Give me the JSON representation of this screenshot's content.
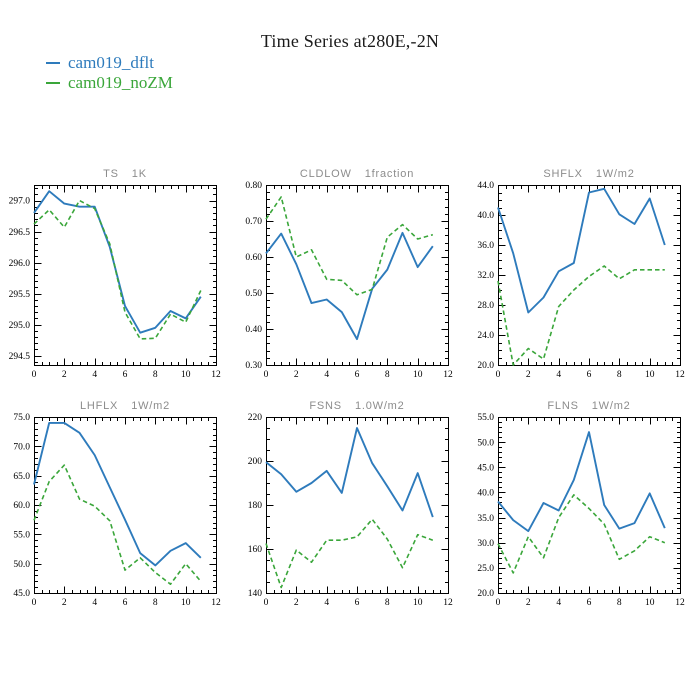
{
  "page": {
    "title": "Time Series at280E,-2N",
    "background": "#ffffff"
  },
  "legend": {
    "position": "top-left",
    "items": [
      {
        "label": "cam019_dflt",
        "color": "#2e7bbc",
        "style": "solid"
      },
      {
        "label": "cam019_noZM",
        "color": "#3aa63a",
        "style": "dashed"
      }
    ]
  },
  "colors": {
    "frame": "#000000",
    "tick_label": "#000000",
    "subplot_title": "#8c8c8c",
    "background": "#ffffff"
  },
  "chart_data": [
    {
      "type": "line",
      "name": "TS",
      "units": "1K",
      "x": [
        0,
        1,
        2,
        3,
        4,
        5,
        6,
        7,
        8,
        9,
        10,
        11
      ],
      "xlim": [
        0,
        12
      ],
      "xticks": [
        0,
        2,
        4,
        6,
        8,
        10,
        12
      ],
      "x_minor_step": 0.5,
      "ylim": [
        294.35,
        297.25
      ],
      "yticks": [
        294.5,
        295.0,
        295.5,
        296.0,
        296.5,
        297.0
      ],
      "ytick_labels": [
        "294.5",
        "295.0",
        "295.5",
        "296.0",
        "296.5",
        "297.0"
      ],
      "y_minor_step": 0.1,
      "grid": false,
      "series": [
        {
          "name": "cam019_dflt",
          "color": "#2e7bbc",
          "style": "solid",
          "values": [
            296.8,
            297.15,
            296.95,
            296.9,
            296.9,
            296.25,
            295.3,
            294.87,
            294.95,
            295.22,
            295.1,
            295.45
          ]
        },
        {
          "name": "cam019_noZM",
          "color": "#3aa63a",
          "style": "dashed",
          "values": [
            296.62,
            296.85,
            296.57,
            297.0,
            296.87,
            296.3,
            295.2,
            294.77,
            294.78,
            295.17,
            295.04,
            295.55
          ]
        }
      ]
    },
    {
      "type": "line",
      "name": "CLDLOW",
      "units": "1fraction",
      "x": [
        0,
        1,
        2,
        3,
        4,
        5,
        6,
        7,
        8,
        9,
        10,
        11
      ],
      "xlim": [
        0,
        12
      ],
      "xticks": [
        0,
        2,
        4,
        6,
        8,
        10,
        12
      ],
      "x_minor_step": 0.5,
      "ylim": [
        0.3,
        0.8
      ],
      "yticks": [
        0.3,
        0.4,
        0.5,
        0.6,
        0.7,
        0.8
      ],
      "ytick_labels": [
        "0.30",
        "0.40",
        "0.50",
        "0.60",
        "0.70",
        "0.80"
      ],
      "y_minor_step": 0.02,
      "grid": false,
      "series": [
        {
          "name": "cam019_dflt",
          "color": "#2e7bbc",
          "style": "solid",
          "values": [
            0.61,
            0.665,
            0.58,
            0.472,
            0.482,
            0.447,
            0.372,
            0.512,
            0.565,
            0.667,
            0.572,
            0.63
          ]
        },
        {
          "name": "cam019_noZM",
          "color": "#3aa63a",
          "style": "dashed",
          "values": [
            0.705,
            0.767,
            0.6,
            0.62,
            0.538,
            0.535,
            0.495,
            0.51,
            0.655,
            0.69,
            0.65,
            0.662
          ]
        }
      ]
    },
    {
      "type": "line",
      "name": "SHFLX",
      "units": "1W/m2",
      "x": [
        0,
        1,
        2,
        3,
        4,
        5,
        6,
        7,
        8,
        9,
        10,
        11
      ],
      "xlim": [
        0,
        12
      ],
      "xticks": [
        0,
        2,
        4,
        6,
        8,
        10,
        12
      ],
      "x_minor_step": 0.5,
      "ylim": [
        20.0,
        44.0
      ],
      "yticks": [
        20.0,
        24.0,
        28.0,
        32.0,
        36.0,
        40.0,
        44.0
      ],
      "ytick_labels": [
        "20.0",
        "24.0",
        "28.0",
        "32.0",
        "36.0",
        "40.0",
        "44.0"
      ],
      "y_minor_step": 1,
      "grid": false,
      "series": [
        {
          "name": "cam019_dflt",
          "color": "#2e7bbc",
          "style": "solid",
          "values": [
            41.0,
            34.9,
            27.0,
            29.0,
            32.5,
            33.6,
            43.0,
            43.5,
            40.1,
            38.8,
            42.2,
            36.0
          ]
        },
        {
          "name": "cam019_noZM",
          "color": "#3aa63a",
          "style": "dashed",
          "values": [
            31.2,
            20.0,
            22.2,
            20.8,
            27.8,
            30.0,
            31.8,
            33.2,
            31.5,
            32.7,
            32.7,
            32.7
          ]
        }
      ]
    },
    {
      "type": "line",
      "name": "LHFLX",
      "units": "1W/m2",
      "x": [
        0,
        1,
        2,
        3,
        4,
        5,
        6,
        7,
        8,
        9,
        10,
        11
      ],
      "xlim": [
        0,
        12
      ],
      "xticks": [
        0,
        2,
        4,
        6,
        8,
        10,
        12
      ],
      "x_minor_step": 0.5,
      "ylim": [
        45.0,
        75.0
      ],
      "yticks": [
        45.0,
        50.0,
        55.0,
        60.0,
        65.0,
        70.0,
        75.0
      ],
      "ytick_labels": [
        "45.0",
        "50.0",
        "55.0",
        "60.0",
        "65.0",
        "70.0",
        "75.0"
      ],
      "y_minor_step": 1,
      "grid": false,
      "series": [
        {
          "name": "cam019_dflt",
          "color": "#2e7bbc",
          "style": "solid",
          "values": [
            63.5,
            74.0,
            74.0,
            72.3,
            68.5,
            63.0,
            57.5,
            51.8,
            49.7,
            52.2,
            53.5,
            51.0
          ]
        },
        {
          "name": "cam019_noZM",
          "color": "#3aa63a",
          "style": "dashed",
          "values": [
            57.4,
            64.0,
            66.8,
            61.0,
            59.8,
            57.3,
            48.9,
            51.0,
            48.5,
            46.5,
            50.0,
            47.0
          ]
        }
      ]
    },
    {
      "type": "line",
      "name": "FSNS",
      "units": "1.0W/m2",
      "x": [
        0,
        1,
        2,
        3,
        4,
        5,
        6,
        7,
        8,
        9,
        10,
        11
      ],
      "xlim": [
        0,
        12
      ],
      "xticks": [
        0,
        2,
        4,
        6,
        8,
        10,
        12
      ],
      "x_minor_step": 0.5,
      "ylim": [
        140,
        220
      ],
      "yticks": [
        140,
        160,
        180,
        200,
        220
      ],
      "ytick_labels": [
        "140",
        "160",
        "180",
        "200",
        "220"
      ],
      "y_minor_step": 5,
      "grid": false,
      "series": [
        {
          "name": "cam019_dflt",
          "color": "#2e7bbc",
          "style": "solid",
          "values": [
            199.5,
            194.0,
            186.0,
            190.0,
            195.5,
            185.5,
            215.0,
            199.0,
            188.5,
            177.5,
            194.5,
            174.5
          ]
        },
        {
          "name": "cam019_noZM",
          "color": "#3aa63a",
          "style": "dashed",
          "values": [
            162.5,
            142.5,
            159.5,
            154.0,
            164.0,
            164.0,
            165.5,
            173.5,
            164.5,
            151.5,
            166.5,
            164.0
          ]
        }
      ]
    },
    {
      "type": "line",
      "name": "FLNS",
      "units": "1W/m2",
      "x": [
        0,
        1,
        2,
        3,
        4,
        5,
        6,
        7,
        8,
        9,
        10,
        11
      ],
      "xlim": [
        0,
        12
      ],
      "xticks": [
        0,
        2,
        4,
        6,
        8,
        10,
        12
      ],
      "x_minor_step": 0.5,
      "ylim": [
        20.0,
        55.0
      ],
      "yticks": [
        20.0,
        25.0,
        30.0,
        35.0,
        40.0,
        45.0,
        50.0,
        55.0
      ],
      "ytick_labels": [
        "20.0",
        "25.0",
        "30.0",
        "35.0",
        "40.0",
        "45.0",
        "50.0",
        "55.0"
      ],
      "y_minor_step": 1,
      "grid": false,
      "series": [
        {
          "name": "cam019_dflt",
          "color": "#2e7bbc",
          "style": "solid",
          "values": [
            38.2,
            34.5,
            32.3,
            37.9,
            36.4,
            42.5,
            52.0,
            37.5,
            32.8,
            33.9,
            39.8,
            32.9
          ]
        },
        {
          "name": "cam019_noZM",
          "color": "#3aa63a",
          "style": "dashed",
          "values": [
            29.8,
            24.0,
            31.2,
            27.0,
            35.0,
            39.5,
            36.8,
            33.7,
            26.7,
            28.4,
            31.2,
            30.0
          ]
        }
      ]
    }
  ]
}
